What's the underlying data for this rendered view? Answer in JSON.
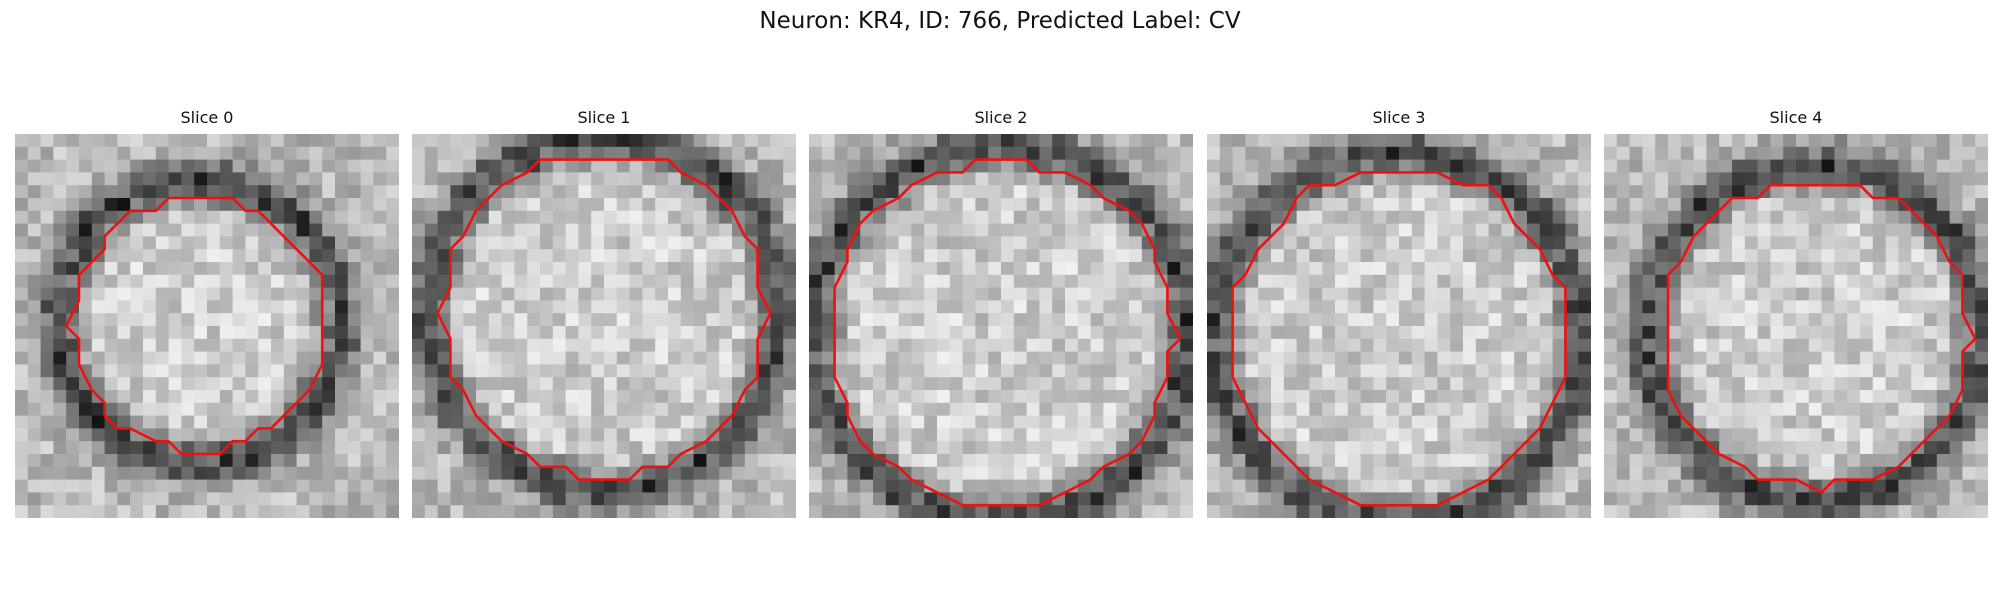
{
  "figure": {
    "title": "Neuron: KR4, ID: 766, Predicted Label: CV"
  },
  "slices": [
    {
      "label": "Slice 0",
      "grid_size": 30,
      "contour_color": "#ee1111",
      "ring_radius": 0.33,
      "center": [
        0.48,
        0.49
      ]
    },
    {
      "label": "Slice 1",
      "grid_size": 30,
      "contour_color": "#ee1111",
      "ring_radius": 0.42,
      "center": [
        0.5,
        0.47
      ]
    },
    {
      "label": "Slice 2",
      "grid_size": 30,
      "contour_color": "#ee1111",
      "ring_radius": 0.45,
      "center": [
        0.5,
        0.52
      ]
    },
    {
      "label": "Slice 3",
      "grid_size": 30,
      "contour_color": "#ee1111",
      "ring_radius": 0.44,
      "center": [
        0.5,
        0.53
      ]
    },
    {
      "label": "Slice 4",
      "grid_size": 30,
      "contour_color": "#ee1111",
      "ring_radius": 0.4,
      "center": [
        0.55,
        0.52
      ]
    }
  ]
}
